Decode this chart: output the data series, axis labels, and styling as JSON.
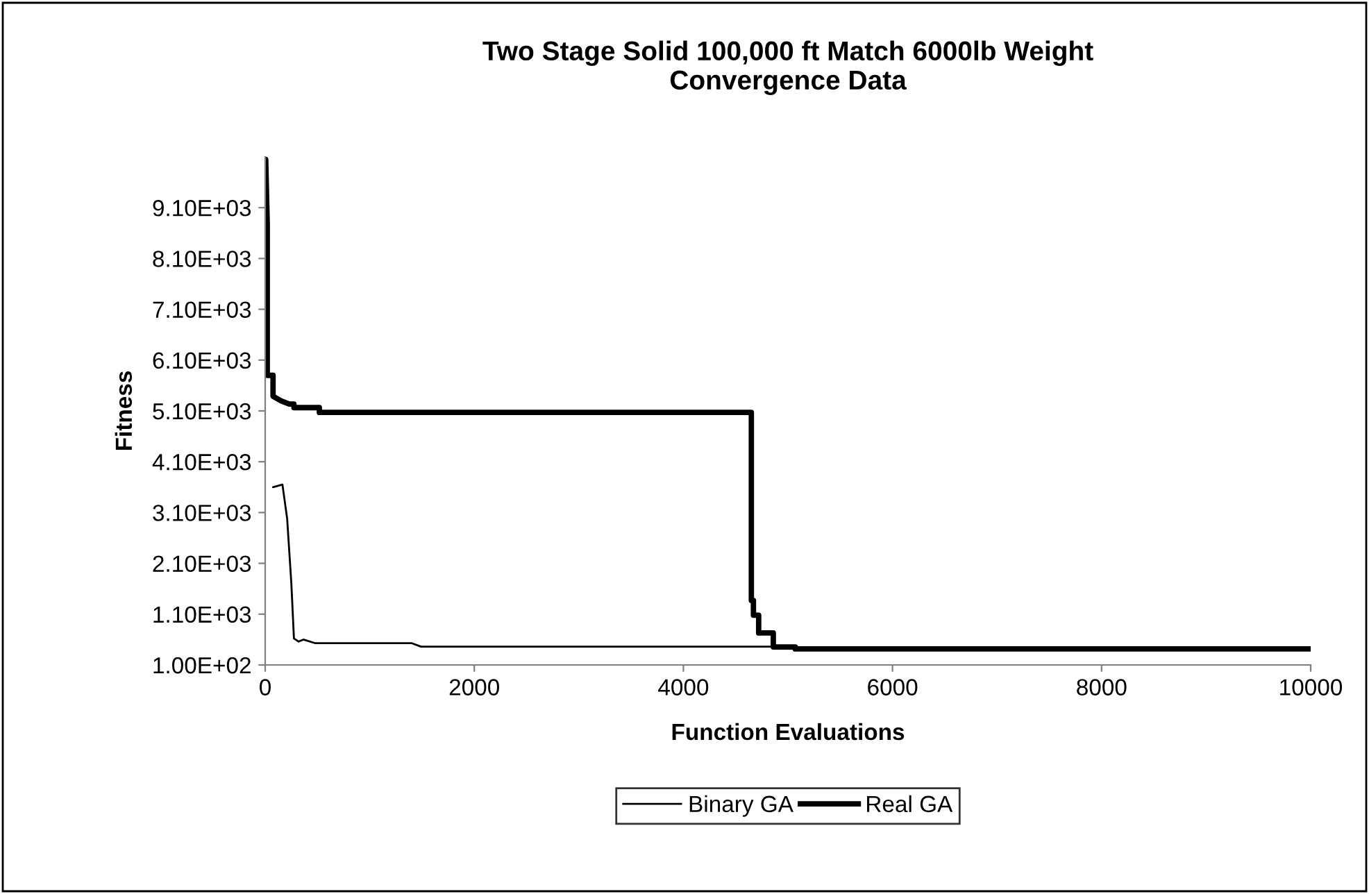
{
  "chart_data": {
    "type": "line",
    "title": "Two Stage Solid 100,000 ft Match 6000lb Weight\nConvergence Data",
    "xlabel": "Function Evaluations",
    "ylabel": "Fitness",
    "xlim": [
      0,
      10000
    ],
    "xticks": [
      0,
      2000,
      4000,
      6000,
      8000,
      10000
    ],
    "ylim": [
      100,
      10100
    ],
    "yticks": [
      {
        "value": 100,
        "label": "1.00E+02"
      },
      {
        "value": 1100,
        "label": "1.10E+03"
      },
      {
        "value": 2100,
        "label": "2.10E+03"
      },
      {
        "value": 3100,
        "label": "3.10E+03"
      },
      {
        "value": 4100,
        "label": "4.10E+03"
      },
      {
        "value": 5100,
        "label": "5.10E+03"
      },
      {
        "value": 6100,
        "label": "6.10E+03"
      },
      {
        "value": 7100,
        "label": "7.10E+03"
      },
      {
        "value": 8100,
        "label": "8.10E+03"
      },
      {
        "value": 9100,
        "label": "9.10E+03"
      }
    ],
    "grid": false,
    "legend": "bottom",
    "marker": "none",
    "line_style": "solid",
    "series": [
      {
        "name": "Binary GA",
        "color": "#000000",
        "x": [
          75,
          165,
          210,
          250,
          275,
          320,
          365,
          475,
          1400,
          1490,
          4900
        ],
        "values": [
          3600,
          3650,
          2980,
          1710,
          620,
          560,
          600,
          530,
          530,
          460,
          460
        ]
      },
      {
        "name": "Real GA",
        "color": "#000000",
        "x": [
          5,
          20,
          20,
          30,
          75,
          75,
          150,
          230,
          275,
          275,
          518,
          518,
          4650,
          4650,
          4670,
          4670,
          4720,
          4720,
          4860,
          4860,
          5070,
          5070,
          10000
        ],
        "values": [
          10050,
          8750,
          5800,
          5800,
          5800,
          5390,
          5300,
          5235,
          5235,
          5165,
          5165,
          5070,
          5070,
          1370,
          1370,
          1080,
          1080,
          730,
          730,
          455,
          455,
          415,
          415
        ]
      }
    ]
  }
}
